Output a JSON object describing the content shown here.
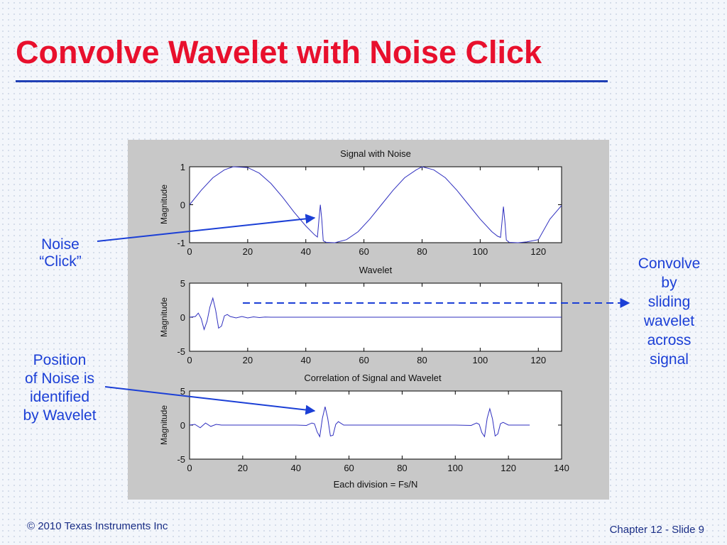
{
  "slide": {
    "title": "Convolve Wavelet with Noise Click",
    "footer_left": "© 2010 Texas Instruments Inc",
    "footer_right": "Chapter 12 - Slide 9"
  },
  "callouts": {
    "noise_line1": "Noise",
    "noise_line2": "“Click”",
    "position_line1": "Position",
    "position_line2": "of Noise is",
    "position_line3": "identified",
    "position_line4": "by Wavelet",
    "convolve_line1": "Convolve",
    "convolve_line2": "by",
    "convolve_line3": "sliding",
    "convolve_line4": "wavelet",
    "convolve_line5": "across",
    "convolve_line6": "signal"
  },
  "colors": {
    "title": "#e8102d",
    "rule": "#1f3fb5",
    "callout": "#1b3fd6",
    "series": "#2f2fbf"
  },
  "chart_data": [
    {
      "type": "line",
      "title": "Signal with Noise",
      "xlabel": "",
      "ylabel": "Magnitude",
      "xlim": [
        0,
        128
      ],
      "ylim": [
        -1,
        1
      ],
      "xticks": [
        0,
        20,
        40,
        60,
        80,
        100,
        120
      ],
      "yticks": [
        -1,
        0,
        1
      ],
      "series": [
        {
          "x": [
            0,
            4,
            8,
            12,
            15,
            20,
            24,
            28,
            32,
            36,
            40,
            43,
            44,
            44.5,
            45,
            45.5,
            46,
            47,
            50,
            54,
            58,
            62,
            66,
            70,
            74,
            78,
            80,
            84,
            88,
            92,
            96,
            100,
            104,
            106,
            107,
            107.5,
            108,
            108.5,
            109,
            110,
            113,
            116,
            120,
            124,
            128
          ],
          "y": [
            0,
            0.38,
            0.71,
            0.92,
            1.0,
            0.98,
            0.83,
            0.56,
            0.2,
            -0.2,
            -0.56,
            -0.79,
            -0.85,
            -0.4,
            0.0,
            -0.4,
            -0.95,
            -0.99,
            -1.0,
            -0.92,
            -0.71,
            -0.38,
            0.0,
            0.38,
            0.71,
            0.92,
            1.0,
            0.92,
            0.71,
            0.38,
            0.0,
            -0.38,
            -0.71,
            -0.83,
            -0.86,
            -0.45,
            -0.05,
            -0.45,
            -0.93,
            -0.99,
            -1.0,
            -0.98,
            -0.92,
            -0.38,
            -0.02
          ]
        }
      ]
    },
    {
      "type": "line",
      "title": "Wavelet",
      "xlabel": "",
      "ylabel": "Magnitude",
      "xlim": [
        0,
        128
      ],
      "ylim": [
        -5,
        5
      ],
      "xticks": [
        0,
        20,
        40,
        60,
        80,
        100,
        120
      ],
      "yticks": [
        -5,
        0,
        5
      ],
      "series": [
        {
          "x": [
            0,
            2,
            3,
            4,
            5,
            6,
            7,
            8,
            9,
            10,
            11,
            12,
            13,
            14,
            16,
            18,
            20,
            22,
            24,
            26,
            28,
            30,
            32,
            128
          ],
          "y": [
            0,
            0.1,
            0.6,
            -0.2,
            -1.8,
            -0.6,
            1.5,
            2.8,
            1.0,
            -1.6,
            -1.3,
            0.2,
            0.4,
            0.1,
            -0.1,
            0.1,
            -0.1,
            0.05,
            -0.05,
            0.03,
            0,
            0,
            0,
            0
          ]
        }
      ]
    },
    {
      "type": "line",
      "title": "Correlation of Signal and Wavelet",
      "xlabel": "Each division = Fs/N",
      "ylabel": "Magnitude",
      "xlim": [
        0,
        140
      ],
      "ylim": [
        -5,
        5
      ],
      "xticks": [
        0,
        20,
        40,
        60,
        80,
        100,
        120,
        140
      ],
      "yticks": [
        -5,
        0,
        5
      ],
      "series": [
        {
          "x": [
            0,
            2,
            4,
            6,
            8,
            10,
            12,
            20,
            40,
            44,
            46,
            47,
            48,
            49,
            50,
            51,
            52,
            53,
            54,
            55,
            56,
            58,
            60,
            80,
            100,
            106,
            108,
            109,
            110,
            111,
            112,
            113,
            114,
            115,
            116,
            117,
            118,
            120,
            122,
            128
          ],
          "y": [
            0,
            0.1,
            -0.4,
            0.3,
            -0.2,
            0.1,
            0,
            0,
            0,
            -0.05,
            0.3,
            0.2,
            -1.0,
            -1.7,
            1.0,
            2.7,
            1.0,
            -1.6,
            -1.5,
            0.1,
            0.5,
            0,
            0,
            0,
            0,
            -0.05,
            0.3,
            0.1,
            -1.1,
            -1.7,
            1.0,
            2.4,
            0.9,
            -1.6,
            -1.3,
            0.2,
            0.4,
            0,
            0,
            0
          ]
        }
      ]
    }
  ]
}
